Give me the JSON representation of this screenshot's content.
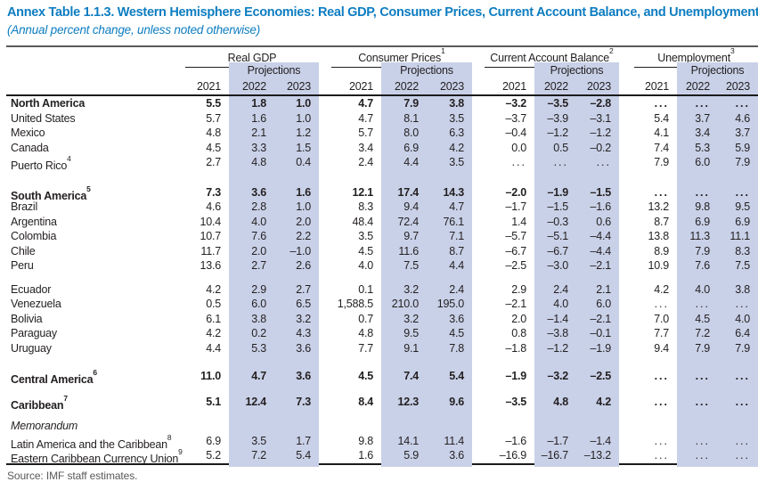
{
  "title": "Annex Table 1.1.3. Western Hemisphere Economies: Real GDP, Consumer Prices, Current Account Balance, and Unemployment",
  "subtitle": "(Annual percent change, unless noted otherwise)",
  "source": "Source: IMF staff estimates.",
  "colors": {
    "accent_blue": "#0d7dc1",
    "projection_band": "#c9d1e8",
    "text": "#231f20",
    "source_gray": "#58595b"
  },
  "table": {
    "projections_label": "Projections",
    "years": [
      "2021",
      "2022",
      "2023"
    ],
    "groups": [
      {
        "label": "Real GDP",
        "sup": ""
      },
      {
        "label": "Consumer Prices",
        "sup": "1"
      },
      {
        "label": "Current Account Balance",
        "sup": "2"
      },
      {
        "label": "Unemployment",
        "sup": "3"
      }
    ],
    "rows": [
      {
        "type": "section",
        "label": "North America",
        "sup": "",
        "values": [
          "5.5",
          "1.8",
          "1.0",
          "4.7",
          "7.9",
          "3.8",
          "–3.2",
          "–3.5",
          "–2.8",
          "...",
          "...",
          "..."
        ]
      },
      {
        "type": "country",
        "label": "United States",
        "sup": "",
        "values": [
          "5.7",
          "1.6",
          "1.0",
          "4.7",
          "8.1",
          "3.5",
          "–3.7",
          "–3.9",
          "–3.1",
          "5.4",
          "3.7",
          "4.6"
        ]
      },
      {
        "type": "country",
        "label": "Mexico",
        "sup": "",
        "values": [
          "4.8",
          "2.1",
          "1.2",
          "5.7",
          "8.0",
          "6.3",
          "–0.4",
          "–1.2",
          "–1.2",
          "4.1",
          "3.4",
          "3.7"
        ]
      },
      {
        "type": "country",
        "label": "Canada",
        "sup": "",
        "values": [
          "4.5",
          "3.3",
          "1.5",
          "3.4",
          "6.9",
          "4.2",
          "0.0",
          "0.5",
          "–0.2",
          "7.4",
          "5.3",
          "5.9"
        ]
      },
      {
        "type": "country",
        "label": "Puerto Rico",
        "sup": "4",
        "values": [
          "2.7",
          "4.8",
          "0.4",
          "2.4",
          "4.4",
          "3.5",
          "...",
          "...",
          "...",
          "7.9",
          "6.0",
          "7.9"
        ]
      },
      {
        "type": "spacer",
        "height": 17
      },
      {
        "type": "section",
        "label": "South America",
        "sup": "5",
        "values": [
          "7.3",
          "3.6",
          "1.6",
          "12.1",
          "17.4",
          "14.3",
          "–2.0",
          "–1.9",
          "–1.5",
          "...",
          "...",
          "..."
        ]
      },
      {
        "type": "country",
        "label": "Brazil",
        "sup": "",
        "values": [
          "4.6",
          "2.8",
          "1.0",
          "8.3",
          "9.4",
          "4.7",
          "–1.7",
          "–1.5",
          "–1.6",
          "13.2",
          "9.8",
          "9.5"
        ]
      },
      {
        "type": "country",
        "label": "Argentina",
        "sup": "",
        "values": [
          "10.4",
          "4.0",
          "2.0",
          "48.4",
          "72.4",
          "76.1",
          "1.4",
          "–0.3",
          "0.6",
          "8.7",
          "6.9",
          "6.9"
        ]
      },
      {
        "type": "country",
        "label": "Colombia",
        "sup": "",
        "values": [
          "10.7",
          "7.6",
          "2.2",
          "3.5",
          "9.7",
          "7.1",
          "–5.7",
          "–5.1",
          "–4.4",
          "13.8",
          "11.3",
          "11.1"
        ]
      },
      {
        "type": "country",
        "label": "Chile",
        "sup": "",
        "values": [
          "11.7",
          "2.0",
          "–1.0",
          "4.5",
          "11.6",
          "8.7",
          "–6.7",
          "–6.7",
          "–4.4",
          "8.9",
          "7.9",
          "8.3"
        ]
      },
      {
        "type": "country",
        "label": "Peru",
        "sup": "",
        "values": [
          "13.6",
          "2.7",
          "2.6",
          "4.0",
          "7.5",
          "4.4",
          "–2.5",
          "–3.0",
          "–2.1",
          "10.9",
          "7.6",
          "7.5"
        ]
      },
      {
        "type": "spacer",
        "height": 10
      },
      {
        "type": "country",
        "label": "Ecuador",
        "sup": "",
        "values": [
          "4.2",
          "2.9",
          "2.7",
          "0.1",
          "3.2",
          "2.4",
          "2.9",
          "2.4",
          "2.1",
          "4.2",
          "4.0",
          "3.8"
        ]
      },
      {
        "type": "country",
        "label": "Venezuela",
        "sup": "",
        "values": [
          "0.5",
          "6.0",
          "6.5",
          "1,588.5",
          "210.0",
          "195.0",
          "–2.1",
          "4.0",
          "6.0",
          "...",
          "...",
          "..."
        ]
      },
      {
        "type": "country",
        "label": "Bolivia",
        "sup": "",
        "values": [
          "6.1",
          "3.8",
          "3.2",
          "0.7",
          "3.2",
          "3.6",
          "2.0",
          "–1.4",
          "–2.1",
          "7.0",
          "4.5",
          "4.0"
        ]
      },
      {
        "type": "country",
        "label": "Paraguay",
        "sup": "",
        "values": [
          "4.2",
          "0.2",
          "4.3",
          "4.8",
          "9.5",
          "4.5",
          "0.8",
          "–3.8",
          "–0.1",
          "7.7",
          "7.2",
          "6.4"
        ]
      },
      {
        "type": "country",
        "label": "Uruguay",
        "sup": "",
        "values": [
          "4.4",
          "5.3",
          "3.6",
          "7.7",
          "9.1",
          "7.8",
          "–1.8",
          "–1.2",
          "–1.9",
          "9.4",
          "7.9",
          "7.9"
        ]
      },
      {
        "type": "spacer",
        "height": 15
      },
      {
        "type": "section",
        "label": "Central America",
        "sup": "6",
        "values": [
          "11.0",
          "4.7",
          "3.6",
          "4.5",
          "7.4",
          "5.4",
          "–1.9",
          "–3.2",
          "–2.5",
          "...",
          "...",
          "..."
        ]
      },
      {
        "type": "spacer",
        "height": 12
      },
      {
        "type": "section",
        "label": "Caribbean",
        "sup": "7",
        "values": [
          "5.1",
          "12.4",
          "7.3",
          "8.4",
          "12.3",
          "9.6",
          "–3.5",
          "4.8",
          "4.2",
          "...",
          "...",
          "..."
        ]
      },
      {
        "type": "spacer",
        "height": 11
      },
      {
        "type": "memo",
        "label": "Memorandum",
        "sup": "",
        "values": [
          "",
          "",
          "",
          "",
          "",
          "",
          "",
          "",
          "",
          "",
          "",
          ""
        ]
      },
      {
        "type": "country",
        "label": "Latin America and the Caribbean",
        "sup": "8",
        "values": [
          "6.9",
          "3.5",
          "1.7",
          "9.8",
          "14.1",
          "11.4",
          "–1.6",
          "–1.7",
          "–1.4",
          "...",
          "...",
          "..."
        ]
      },
      {
        "type": "country",
        "label": "Eastern Caribbean Currency Union",
        "sup": "9",
        "values": [
          "5.2",
          "7.2",
          "5.4",
          "1.6",
          "5.9",
          "3.6",
          "–16.9",
          "–16.7",
          "–13.2",
          "...",
          "...",
          "..."
        ]
      }
    ]
  }
}
